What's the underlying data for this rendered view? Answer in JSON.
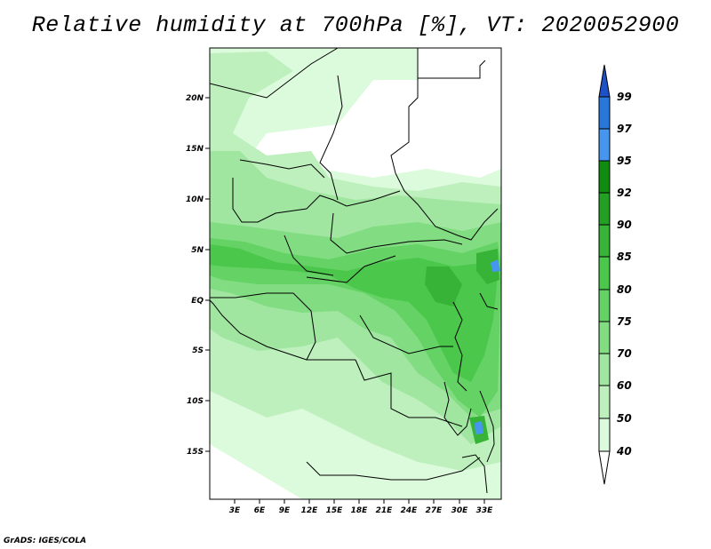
{
  "title": "Relative humidity at 700hPa [%], VT: 2020052900",
  "credit": "GrADS: IGES/COLA",
  "map": {
    "lat_ticks": [
      "20N",
      "15N",
      "10N",
      "5N",
      "EQ",
      "5S",
      "10S",
      "15S"
    ],
    "lon_ticks": [
      "3E",
      "6E",
      "9E",
      "12E",
      "15E",
      "18E",
      "21E",
      "24E",
      "27E",
      "30E",
      "33E"
    ]
  },
  "colorbar": {
    "levels": [
      "99",
      "97",
      "95",
      "92",
      "90",
      "85",
      "80",
      "75",
      "70",
      "60",
      "50",
      "40"
    ],
    "colors": [
      "#1e50c8",
      "#2878dc",
      "#4696f0",
      "#0f8c0f",
      "#23a023",
      "#37b437",
      "#4bc84b",
      "#64d264",
      "#82dc82",
      "#a0e6a0",
      "#bef0be",
      "#dcfadc",
      "#ffffff"
    ]
  },
  "colors": {
    "land_base": "#ffffff",
    "rh_40": "#dcfadc",
    "rh_50": "#bef0be",
    "rh_60": "#a0e6a0",
    "rh_70": "#82dc82",
    "rh_75": "#64d264",
    "rh_80": "#4bc84b",
    "rh_85": "#37b437",
    "rh_95": "#4696f0",
    "rh_97": "#2878dc"
  }
}
